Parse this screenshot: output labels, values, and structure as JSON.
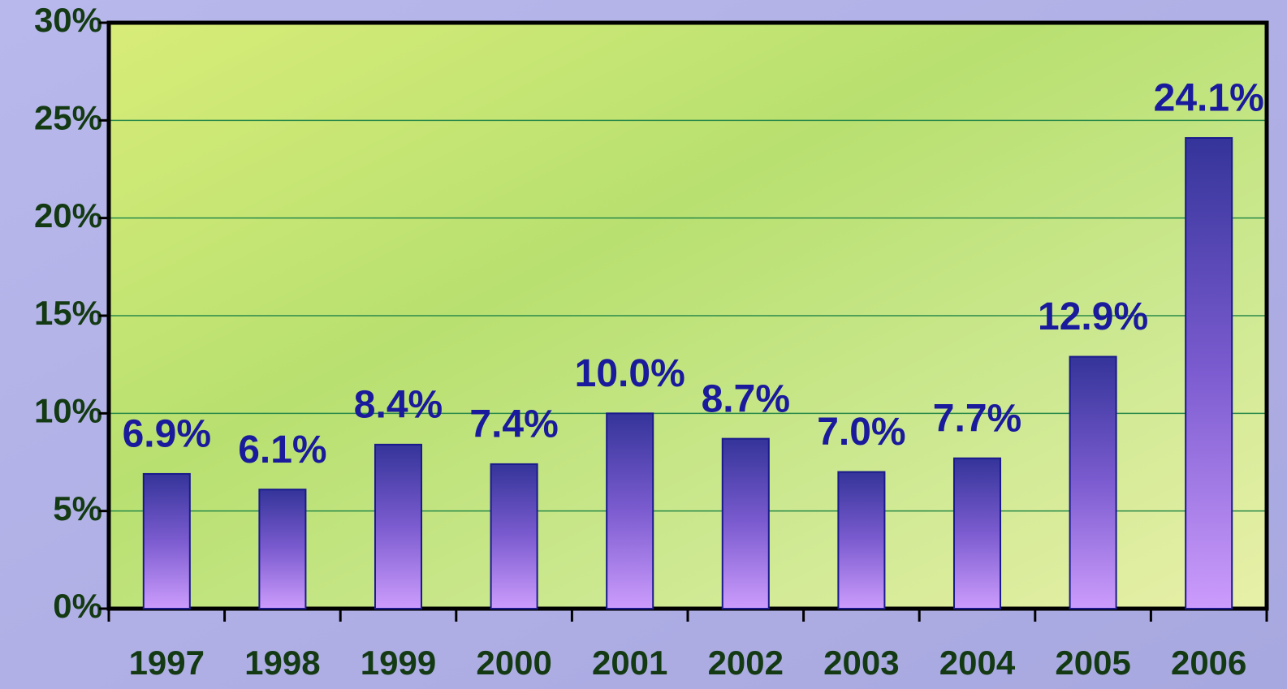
{
  "chart_data": {
    "type": "bar",
    "categories": [
      "1997",
      "1998",
      "1999",
      "2000",
      "2001",
      "2002",
      "2003",
      "2004",
      "2005",
      "2006"
    ],
    "values": [
      6.9,
      6.1,
      8.4,
      7.4,
      10.0,
      8.7,
      7.0,
      7.7,
      12.9,
      24.1
    ],
    "value_labels": [
      "6.9%",
      "6.1%",
      "8.4%",
      "7.4%",
      "10.0%",
      "8.7%",
      "7.0%",
      "7.7%",
      "12.9%",
      "24.1%"
    ],
    "ylim": [
      0,
      30
    ],
    "yticks": [
      {
        "value": 0,
        "label": "0%"
      },
      {
        "value": 5,
        "label": "5%"
      },
      {
        "value": 10,
        "label": "10%"
      },
      {
        "value": 15,
        "label": "15%"
      },
      {
        "value": 20,
        "label": "20%"
      },
      {
        "value": 25,
        "label": "25%"
      },
      {
        "value": 30,
        "label": "30%"
      }
    ],
    "grid": true
  }
}
